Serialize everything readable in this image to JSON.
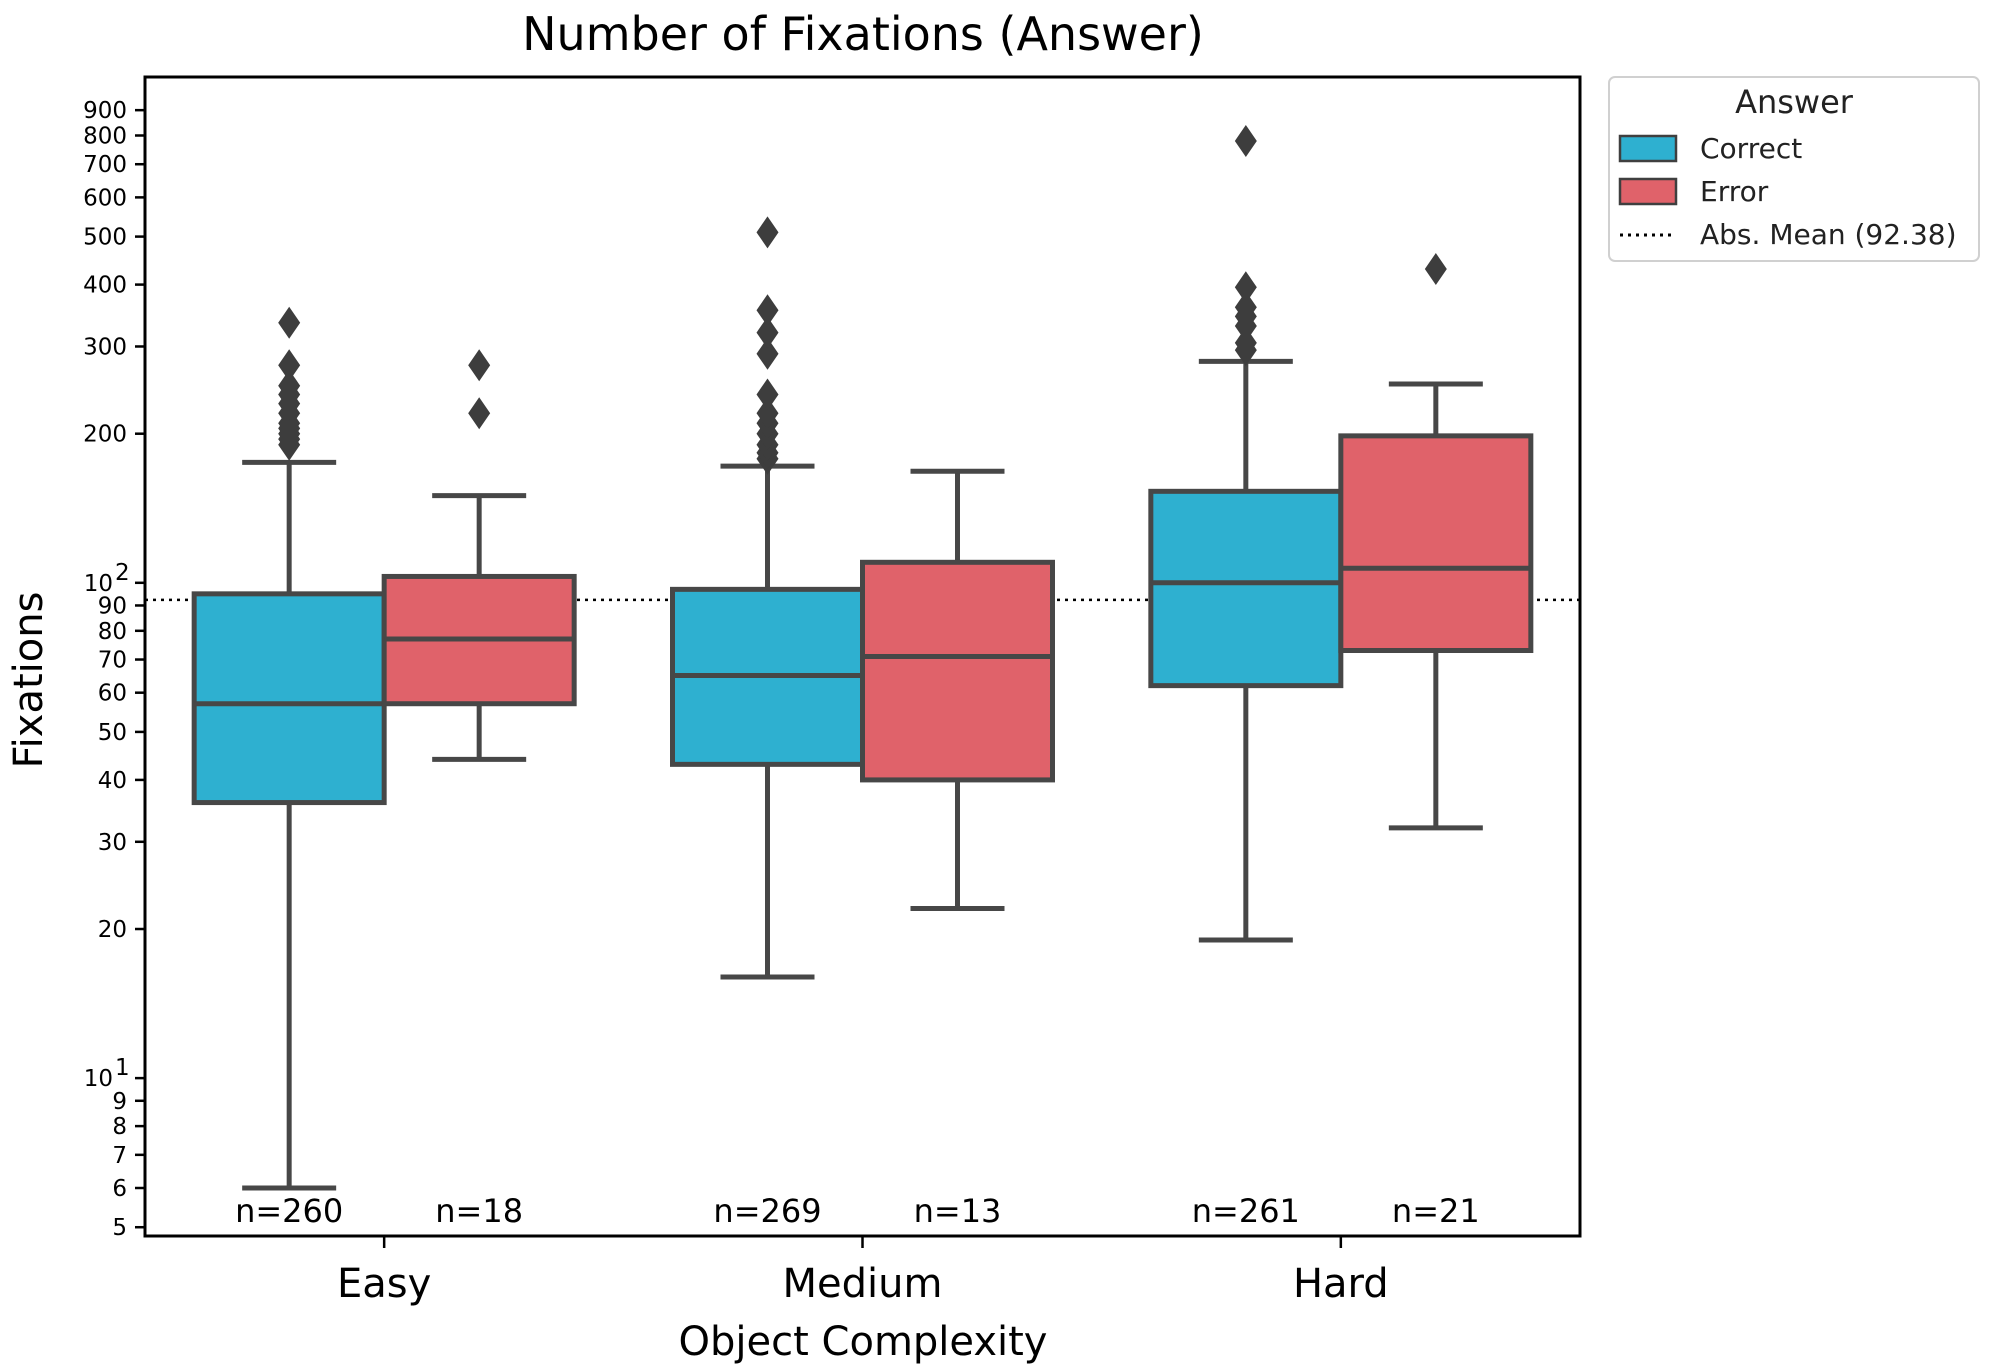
{
  "chart_data": {
    "type": "boxplot",
    "title": "Number of Fixations (Answer)",
    "xlabel": "Object Complexity",
    "ylabel": "Fixations",
    "yscale": "log",
    "ylim": [
      4.8,
      1050
    ],
    "categories": [
      "Easy",
      "Medium",
      "Hard"
    ],
    "y_ticks": [
      {
        "value": 5,
        "label": "5"
      },
      {
        "value": 6,
        "label": "6"
      },
      {
        "value": 7,
        "label": "7"
      },
      {
        "value": 8,
        "label": "8"
      },
      {
        "value": 9,
        "label": "9"
      },
      {
        "value": 10,
        "label": "10",
        "exp": "1"
      },
      {
        "value": 20,
        "label": "20"
      },
      {
        "value": 30,
        "label": "30"
      },
      {
        "value": 40,
        "label": "40"
      },
      {
        "value": 50,
        "label": "50"
      },
      {
        "value": 60,
        "label": "60"
      },
      {
        "value": 70,
        "label": "70"
      },
      {
        "value": 80,
        "label": "80"
      },
      {
        "value": 90,
        "label": "90"
      },
      {
        "value": 100,
        "label": "10",
        "exp": "2"
      },
      {
        "value": 200,
        "label": "200"
      },
      {
        "value": 300,
        "label": "300"
      },
      {
        "value": 400,
        "label": "400"
      },
      {
        "value": 500,
        "label": "500"
      },
      {
        "value": 600,
        "label": "600"
      },
      {
        "value": 700,
        "label": "700"
      },
      {
        "value": 800,
        "label": "800"
      },
      {
        "value": 900,
        "label": "900"
      }
    ],
    "series": [
      {
        "name": "Correct",
        "color": "#2eb0d0",
        "boxes": [
          {
            "category": "Easy",
            "whisker_low": 6,
            "q1": 36,
            "median": 57,
            "q3": 95,
            "whisker_high": 175,
            "outliers": [
              190,
              195,
              200,
              205,
              210,
              220,
              230,
              240,
              250,
              275,
              335
            ],
            "n_label": "n=260"
          },
          {
            "category": "Medium",
            "whisker_low": 16,
            "q1": 43,
            "median": 65,
            "q3": 97,
            "whisker_high": 172,
            "outliers": [
              178,
              183,
              190,
              200,
              210,
              220,
              240,
              290,
              320,
              355,
              510
            ],
            "n_label": "n=269"
          },
          {
            "category": "Hard",
            "whisker_low": 19,
            "q1": 62,
            "median": 100,
            "q3": 153,
            "whisker_high": 280,
            "outliers": [
              295,
              305,
              330,
              345,
              360,
              395,
              780
            ],
            "n_label": "n=261"
          }
        ]
      },
      {
        "name": "Error",
        "color": "#e0626a",
        "boxes": [
          {
            "category": "Easy",
            "whisker_low": 44,
            "q1": 57,
            "median": 77,
            "q3": 103,
            "whisker_high": 150,
            "outliers": [
              220,
              275
            ],
            "n_label": "n=18"
          },
          {
            "category": "Medium",
            "whisker_low": 22,
            "q1": 40,
            "median": 71,
            "q3": 110,
            "whisker_high": 168,
            "outliers": [],
            "n_label": "n=13"
          },
          {
            "category": "Hard",
            "whisker_low": 32,
            "q1": 73,
            "median": 107,
            "q3": 198,
            "whisker_high": 252,
            "outliers": [
              430
            ],
            "n_label": "n=21"
          }
        ]
      }
    ],
    "reference_line": {
      "label": "Abs. Mean (92.38)",
      "value": 92.38,
      "style": "dotted"
    },
    "legend": {
      "title": "Answer",
      "placement": "outside-top-right"
    }
  }
}
